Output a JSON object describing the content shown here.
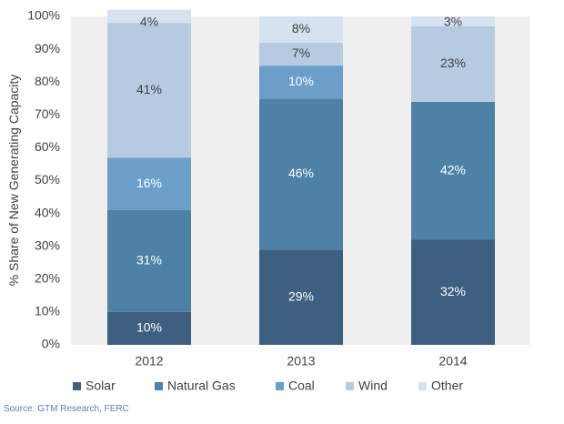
{
  "chart_data": {
    "type": "bar",
    "stacked": true,
    "categories": [
      "2012",
      "2013",
      "2014"
    ],
    "series": [
      {
        "name": "Solar",
        "values": [
          10,
          29,
          32
        ],
        "labels": [
          "10%",
          "29%",
          "32%"
        ],
        "color": "#3d5f80",
        "label_color": "#ffffff"
      },
      {
        "name": "Natural Gas",
        "values": [
          31,
          46,
          42
        ],
        "labels": [
          "31%",
          "46%",
          "42%"
        ],
        "color": "#4d81a6",
        "label_color": "#ffffff"
      },
      {
        "name": "Coal",
        "values": [
          16,
          10,
          0
        ],
        "labels": [
          "16%",
          "10%",
          ""
        ],
        "color": "#6b9fca",
        "label_color": "#ffffff"
      },
      {
        "name": "Wind",
        "values": [
          41,
          7,
          23
        ],
        "labels": [
          "41%",
          "7%",
          "23%"
        ],
        "color": "#b6cbe1",
        "label_color": "#404040"
      },
      {
        "name": "Other",
        "values": [
          4,
          8,
          3
        ],
        "labels": [
          "4%",
          "8%",
          "3%"
        ],
        "color": "#d6e2f0",
        "label_color": "#404040"
      }
    ],
    "ylabel": "% Share of New Generating Capacity",
    "ylim": [
      0,
      100
    ],
    "yticks": [
      "0%",
      "10%",
      "20%",
      "30%",
      "40%",
      "50%",
      "60%",
      "70%",
      "80%",
      "90%",
      "100%"
    ],
    "legend_position": "bottom",
    "grid": false,
    "background": "#efefef"
  },
  "source": "Source:   GTM Research, FERC"
}
